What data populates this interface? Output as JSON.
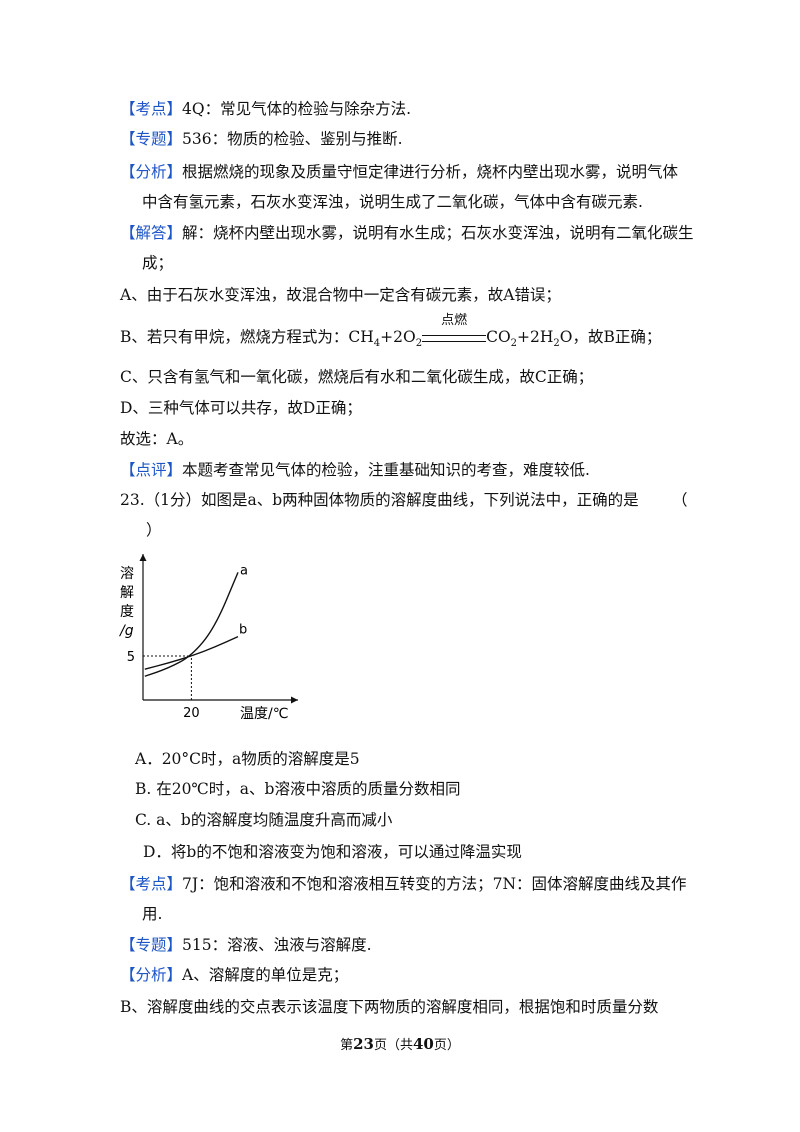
{
  "prev": {
    "kaodian": {
      "tag": "【考点】",
      "text": "4Q：常见气体的检验与除杂方法."
    },
    "zhuanti": {
      "tag": "【专题】",
      "text": "536：物质的检验、鉴别与推断."
    },
    "fenxi": {
      "tag": "【分析】",
      "line1": "根据燃烧的现象及质量守恒定律进行分析，烧杯内壁出现水雾，说明气体",
      "line2": "中含有氢元素，石灰水变浑浊，说明生成了二氧化碳，气体中含有碳元素."
    },
    "jieda": {
      "tag": "【解答】",
      "line1": "解：烧杯内壁出现水雾，说明有水生成；石灰水变浑浊，说明有二氧化碳生",
      "line2": "成；"
    },
    "a": "A、由于石灰水变浑浊，故混合物中一定含有碳元素，故A错误；",
    "b": {
      "pre": "B、若只有甲烷，燃烧方程式为：CH",
      "sub1": "4",
      "mid1": "+2O",
      "sub2": "2",
      "cond": "点燃",
      "mid2": "CO",
      "sub3": "2",
      "mid3": "+2H",
      "sub4": "2",
      "post": "O，故B正确；"
    },
    "c": "C、只含有氢气和一氧化碳，燃烧后有水和二氧化碳生成，故C正确；",
    "d": "D、三种气体可以共存，故D正确；",
    "choice": "故选：A。",
    "dianping": {
      "tag": "【点评】",
      "text": "本题考查常见气体的检验，注重基础知识的考查，难度较低."
    }
  },
  "q23": {
    "stem1": "23.（1分）如图是a、b两种固体物质的溶解度曲线，下列说法中，正确的是",
    "paren_open": "（",
    "paren_close": "）",
    "options": [
      "A．20°C时，a物质的溶解度是5",
      "B. 在20℃时，a、b溶液中溶质的质量分数相同",
      "C. a、b的溶解度均随温度升高而减小",
      "D．将b的不饱和溶液变为饱和溶液，可以通过降温实现"
    ],
    "kaodian": {
      "tag": "【考点】",
      "line1": "7J：饱和溶液和不饱和溶液相互转变的方法；7N：固体溶解度曲线及其作",
      "line2": "用."
    },
    "zhuanti": {
      "tag": "【专题】",
      "text": "515：溶液、浊液与溶解度."
    },
    "fenxi": {
      "tag": "【分析】",
      "text": "A、溶解度的单位是克；"
    },
    "b_line": "B、溶解度曲线的交点表示该温度下两物质的溶解度相同，根据饱和时质量分数"
  },
  "chart_data": {
    "type": "line",
    "ylabel": "溶解度/g",
    "xlabel": "温度/℃",
    "x_ticks": [
      "20"
    ],
    "y_ticks": [
      "5"
    ],
    "series": [
      {
        "name": "a",
        "x": [
          0,
          10,
          20,
          30,
          40
        ],
        "y": [
          2.7,
          3.6,
          5,
          8.2,
          14.5
        ]
      },
      {
        "name": "b",
        "x": [
          0,
          10,
          20,
          30,
          40
        ],
        "y": [
          3.5,
          4.2,
          5,
          6.0,
          7.2
        ]
      }
    ],
    "intersection": {
      "x": 20,
      "y": 5
    },
    "grid": false
  },
  "footer": {
    "pre": "第",
    "page": "23",
    "mid": "页（共",
    "total": "40",
    "post": "页）"
  }
}
